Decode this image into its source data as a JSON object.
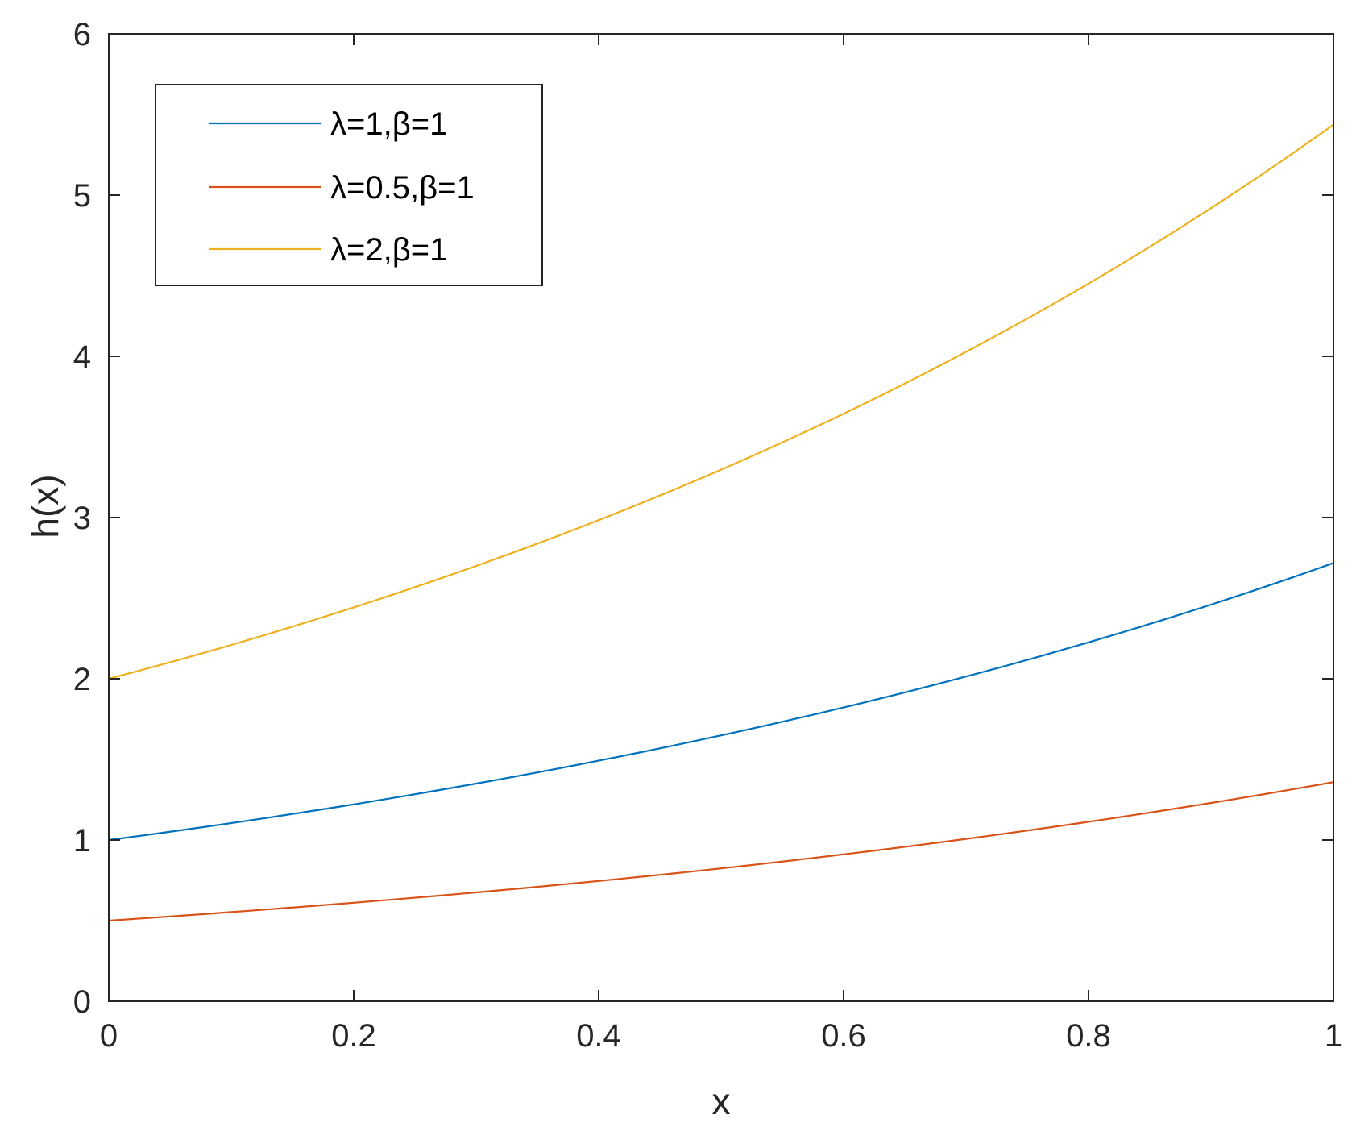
{
  "chart_data": {
    "type": "line",
    "title": "",
    "xlabel": "x",
    "ylabel": "h(x)",
    "xlim": [
      0,
      1
    ],
    "ylim": [
      0,
      6
    ],
    "xticks": [
      0,
      0.2,
      0.4,
      0.6,
      0.8,
      1
    ],
    "xtick_labels": [
      "0",
      "0.2",
      "0.4",
      "0.6",
      "0.8",
      "1"
    ],
    "yticks": [
      0,
      1,
      2,
      3,
      4,
      5,
      6
    ],
    "ytick_labels": [
      "0",
      "1",
      "2",
      "3",
      "4",
      "5",
      "6"
    ],
    "grid": false,
    "legend_position": "top-left",
    "x": [
      0,
      0.1,
      0.2,
      0.3,
      0.4,
      0.5,
      0.6,
      0.7,
      0.8,
      0.9,
      1.0
    ],
    "series": [
      {
        "name": "λ=1,β=1",
        "color": "#0072BD",
        "values": [
          1.0,
          1.105,
          1.221,
          1.35,
          1.492,
          1.649,
          1.822,
          2.014,
          2.226,
          2.46,
          2.718
        ]
      },
      {
        "name": "λ=0.5,β=1",
        "color": "#D95319",
        "values": [
          0.5,
          0.553,
          0.611,
          0.675,
          0.746,
          0.824,
          0.911,
          1.007,
          1.113,
          1.23,
          1.359
        ]
      },
      {
        "name": "λ=2,β=1",
        "color": "#EDB120",
        "values": [
          2.0,
          2.21,
          2.443,
          2.7,
          2.984,
          3.297,
          3.644,
          4.028,
          4.451,
          4.919,
          5.437
        ]
      }
    ]
  }
}
